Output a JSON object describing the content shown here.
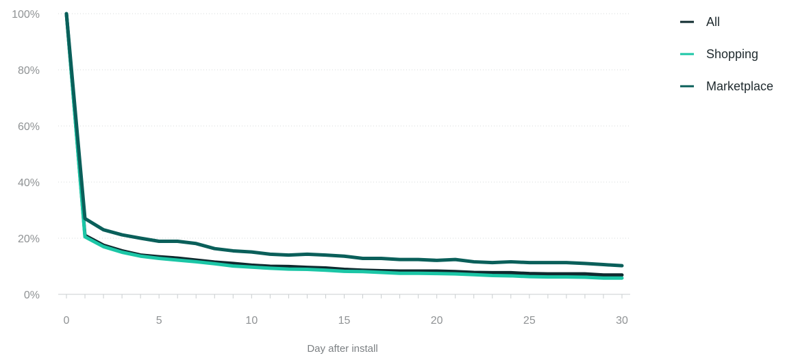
{
  "chart_data": {
    "type": "line",
    "title": "",
    "xlabel": "Day after install",
    "ylabel": "",
    "xlim": [
      0,
      30
    ],
    "ylim": [
      0,
      100
    ],
    "grid": true,
    "legend_position": "top-right",
    "x_ticks": [
      "0",
      "5",
      "10",
      "15",
      "20",
      "25",
      "30"
    ],
    "y_ticks": [
      "0%",
      "20%",
      "40%",
      "60%",
      "80%",
      "100%"
    ],
    "x": [
      0,
      1,
      2,
      3,
      4,
      5,
      6,
      7,
      8,
      9,
      10,
      11,
      12,
      13,
      14,
      15,
      16,
      17,
      18,
      19,
      20,
      21,
      22,
      23,
      24,
      25,
      26,
      27,
      28,
      29,
      30
    ],
    "series": [
      {
        "name": "All",
        "color": "#0e2a2e",
        "values": [
          100,
          21,
          17.5,
          15.5,
          14,
          13.4,
          12.9,
          12.2,
          11.5,
          11,
          10.4,
          10,
          9.9,
          9.6,
          9.4,
          8.9,
          8.6,
          8.4,
          8.3,
          8.3,
          8.3,
          8.1,
          7.8,
          7.7,
          7.7,
          7.4,
          7.3,
          7.3,
          7.3,
          6.9,
          6.9
        ]
      },
      {
        "name": "Shopping",
        "color": "#1bc6a6",
        "values": [
          100,
          20.5,
          17,
          15,
          13.6,
          12.8,
          12.2,
          11.6,
          10.9,
          10.1,
          9.7,
          9.3,
          9,
          8.9,
          8.6,
          8.2,
          8.1,
          7.8,
          7.5,
          7.5,
          7.4,
          7.3,
          7,
          6.7,
          6.6,
          6.3,
          6.2,
          6.2,
          6.1,
          5.8,
          5.8
        ]
      },
      {
        "name": "Marketplace",
        "color": "#0a5f5a",
        "values": [
          100,
          27,
          23,
          21.2,
          20,
          18.9,
          18.9,
          18.1,
          16.3,
          15.5,
          15.1,
          14.3,
          14,
          14.3,
          14,
          13.6,
          12.8,
          12.8,
          12.4,
          12.4,
          12.1,
          12.4,
          11.6,
          11.3,
          11.6,
          11.3,
          11.3,
          11.3,
          11,
          10.6,
          10.2
        ]
      }
    ]
  }
}
